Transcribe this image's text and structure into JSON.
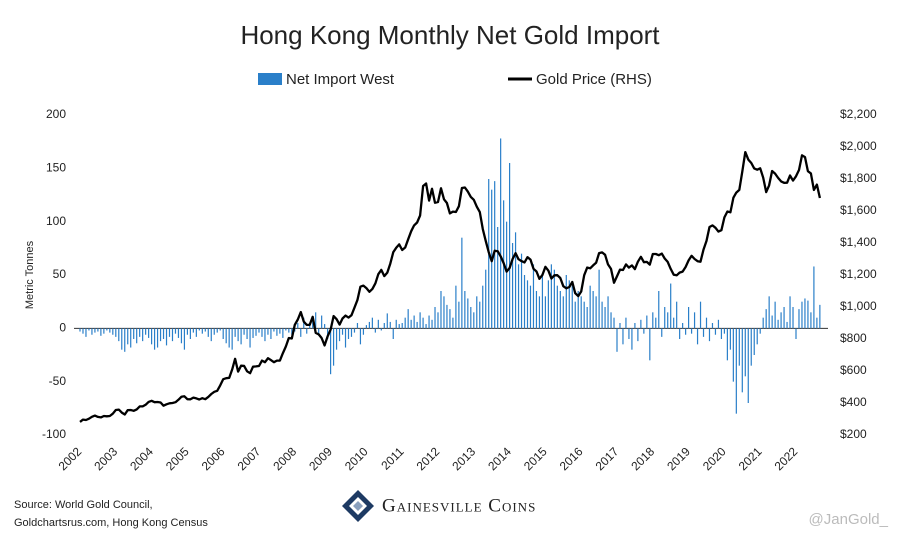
{
  "chart_data": {
    "type": "bar_line",
    "title": "Hong Kong Monthly Net Gold Import",
    "ylabel": "Metric Tonnes",
    "source": [
      "Source: World Gold Council,",
      "Goldchartsrus.com, Hong Kong Census"
    ],
    "logo": "Gainesville Coins",
    "watermark": "@JanGold_",
    "categories": [
      "2002",
      null,
      null,
      null,
      null,
      null,
      null,
      null,
      null,
      null,
      null,
      null,
      "2003",
      null,
      null,
      null,
      null,
      null,
      null,
      null,
      null,
      null,
      null,
      null,
      "2004",
      null,
      null,
      null,
      null,
      null,
      null,
      null,
      null,
      null,
      null,
      null,
      "2005",
      null,
      null,
      null,
      null,
      null,
      null,
      null,
      null,
      null,
      null,
      null,
      "2006",
      null,
      null,
      null,
      null,
      null,
      null,
      null,
      null,
      null,
      null,
      null,
      "2007",
      null,
      null,
      null,
      null,
      null,
      null,
      null,
      null,
      null,
      null,
      null,
      "2008",
      null,
      null,
      null,
      null,
      null,
      null,
      null,
      null,
      null,
      null,
      null,
      "2009",
      null,
      null,
      null,
      null,
      null,
      null,
      null,
      null,
      null,
      null,
      null,
      "2010",
      null,
      null,
      null,
      null,
      null,
      null,
      null,
      null,
      null,
      null,
      null,
      "2011",
      null,
      null,
      null,
      null,
      null,
      null,
      null,
      null,
      null,
      null,
      null,
      "2012",
      null,
      null,
      null,
      null,
      null,
      null,
      null,
      null,
      null,
      null,
      null,
      "2013",
      null,
      null,
      null,
      null,
      null,
      null,
      null,
      null,
      null,
      null,
      null,
      "2014",
      null,
      null,
      null,
      null,
      null,
      null,
      null,
      null,
      null,
      null,
      null,
      "2015",
      null,
      null,
      null,
      null,
      null,
      null,
      null,
      null,
      null,
      null,
      null,
      "2016",
      null,
      null,
      null,
      null,
      null,
      null,
      null,
      null,
      null,
      null,
      null,
      "2017",
      null,
      null,
      null,
      null,
      null,
      null,
      null,
      null,
      null,
      null,
      null,
      "2018",
      null,
      null,
      null,
      null,
      null,
      null,
      null,
      null,
      null,
      null,
      null,
      "2019",
      null,
      null,
      null,
      null,
      null,
      null,
      null,
      null,
      null,
      null,
      null,
      "2020",
      null,
      null,
      null,
      null,
      null,
      null,
      null,
      null,
      null,
      null,
      null,
      "2021",
      null,
      null,
      null,
      null,
      null,
      null,
      null,
      null,
      null,
      null,
      null,
      "2022",
      null,
      null,
      null,
      null,
      null,
      null,
      null,
      null
    ],
    "series": [
      {
        "name": "Net Import West",
        "type": "bar",
        "color": "#2a7fc9",
        "values": [
          -3,
          -5,
          -8,
          -2,
          -6,
          -4,
          -3,
          -7,
          -5,
          -2,
          -4,
          -6,
          -8,
          -12,
          -20,
          -22,
          -15,
          -18,
          -10,
          -14,
          -8,
          -12,
          -6,
          -9,
          -15,
          -20,
          -18,
          -12,
          -10,
          -16,
          -8,
          -12,
          -5,
          -9,
          -14,
          -20,
          -6,
          -10,
          -4,
          -8,
          -2,
          -5,
          -3,
          -8,
          -12,
          -6,
          -4,
          -2,
          -10,
          -14,
          -18,
          -20,
          -8,
          -12,
          -15,
          -6,
          -10,
          -18,
          -9,
          -7,
          -4,
          -8,
          -12,
          -6,
          -10,
          -3,
          -7,
          -5,
          -9,
          -2,
          -4,
          -6,
          -3,
          5,
          -8,
          10,
          -5,
          3,
          8,
          15,
          -6,
          12,
          4,
          -10,
          -43,
          -35,
          -20,
          -12,
          -6,
          -18,
          -10,
          -8,
          -4,
          5,
          -15,
          -6,
          3,
          6,
          10,
          -4,
          8,
          -2,
          5,
          14,
          6,
          -10,
          8,
          4,
          5,
          10,
          18,
          8,
          12,
          6,
          15,
          10,
          4,
          12,
          8,
          20,
          15,
          35,
          30,
          22,
          18,
          10,
          40,
          25,
          85,
          35,
          28,
          20,
          15,
          30,
          25,
          40,
          55,
          140,
          130,
          138,
          95,
          178,
          120,
          100,
          155,
          80,
          90,
          60,
          70,
          50,
          45,
          40,
          60,
          35,
          30,
          50,
          30,
          45,
          60,
          55,
          40,
          35,
          30,
          50,
          45,
          40,
          25,
          35,
          30,
          25,
          20,
          40,
          35,
          30,
          55,
          25,
          20,
          30,
          15,
          10,
          -22,
          5,
          -15,
          10,
          -10,
          -20,
          5,
          -12,
          8,
          -5,
          12,
          -30,
          15,
          10,
          35,
          -8,
          20,
          15,
          42,
          10,
          25,
          -10,
          5,
          -6,
          20,
          -5,
          15,
          -15,
          25,
          -8,
          10,
          -12,
          5,
          -6,
          8,
          -10,
          -5,
          -30,
          -20,
          -50,
          -80,
          -35,
          -60,
          -45,
          -70,
          -35,
          -25,
          -15,
          -5,
          10,
          18,
          30,
          12,
          25,
          8,
          15,
          20,
          6,
          30,
          20,
          -10,
          18,
          25,
          28,
          26,
          15,
          58,
          10,
          22
        ]
      },
      {
        "name": "Gold Price (RHS)",
        "type": "line",
        "axis": "y2",
        "color": "#000000",
        "values": [
          282,
          296,
          294,
          302,
          314,
          321,
          313,
          310,
          319,
          317,
          319,
          333,
          356,
          359,
          340,
          328,
          355,
          356,
          351,
          360,
          379,
          379,
          389,
          407,
          414,
          405,
          406,
          403,
          383,
          392,
          398,
          400,
          405,
          420,
          439,
          442,
          424,
          423,
          434,
          429,
          422,
          430,
          424,
          438,
          456,
          470,
          476,
          510,
          549,
          555,
          557,
          610,
          676,
          596,
          633,
          632,
          598,
          586,
          627,
          629,
          631,
          665,
          655,
          680,
          668,
          655,
          665,
          665,
          712,
          754,
          806,
          803,
          889,
          922,
          968,
          909,
          888,
          889,
          939,
          839,
          829,
          806,
          760,
          816,
          858,
          943,
          924,
          890,
          928,
          946,
          934,
          949,
          996,
          1043,
          1127,
          1134,
          1118,
          1095,
          1113,
          1148,
          1205,
          1232,
          1193,
          1215,
          1271,
          1343,
          1370,
          1391,
          1356,
          1372,
          1424,
          1474,
          1510,
          1528,
          1572,
          1756,
          1772,
          1665,
          1739,
          1652,
          1656,
          1742,
          1673,
          1650,
          1585,
          1596,
          1594,
          1630,
          1744,
          1747,
          1721,
          1688,
          1670,
          1627,
          1593,
          1487,
          1414,
          1343,
          1286,
          1352,
          1349,
          1316,
          1275,
          1221,
          1244,
          1300,
          1336,
          1299,
          1287,
          1279,
          1311,
          1296,
          1239,
          1222,
          1176,
          1200,
          1251,
          1227,
          1178,
          1198,
          1199,
          1181,
          1130,
          1117,
          1125,
          1156,
          1086,
          1068,
          1097,
          1199,
          1246,
          1242,
          1260,
          1276,
          1337,
          1341,
          1326,
          1266,
          1238,
          1152,
          1192,
          1234,
          1231,
          1266,
          1246,
          1260,
          1237,
          1283,
          1314,
          1280,
          1282,
          1265,
          1331,
          1331,
          1324,
          1334,
          1303,
          1282,
          1238,
          1202,
          1198,
          1215,
          1221,
          1250,
          1291,
          1320,
          1300,
          1286,
          1283,
          1359,
          1413,
          1500,
          1510,
          1495,
          1471,
          1480,
          1560,
          1597,
          1592,
          1683,
          1715,
          1732,
          1846,
          1968,
          1921,
          1900,
          1866,
          1858,
          1867,
          1808,
          1718,
          1760,
          1850,
          1834,
          1807,
          1785,
          1776,
          1777,
          1822,
          1790,
          1817,
          1856,
          1948,
          1937,
          1849,
          1835,
          1732,
          1765,
          1681
        ]
      }
    ],
    "ylim": [
      -100,
      200
    ],
    "yticks": [
      -100,
      -50,
      0,
      50,
      100,
      150,
      200
    ],
    "y2lim": [
      200,
      2200
    ],
    "y2ticks": [
      {
        "value": 200,
        "label": "$200"
      },
      {
        "value": 400,
        "label": "$400"
      },
      {
        "value": 600,
        "label": "$600"
      },
      {
        "value": 800,
        "label": "$800"
      },
      {
        "value": 1000,
        "label": "$1,000"
      },
      {
        "value": 1200,
        "label": "$1,200"
      },
      {
        "value": 1400,
        "label": "$1,400"
      },
      {
        "value": 1600,
        "label": "$1,600"
      },
      {
        "value": 1800,
        "label": "$1,800"
      },
      {
        "value": 2000,
        "label": "$2,000"
      },
      {
        "value": 2200,
        "label": "$2,200"
      }
    ],
    "legend": "top"
  }
}
